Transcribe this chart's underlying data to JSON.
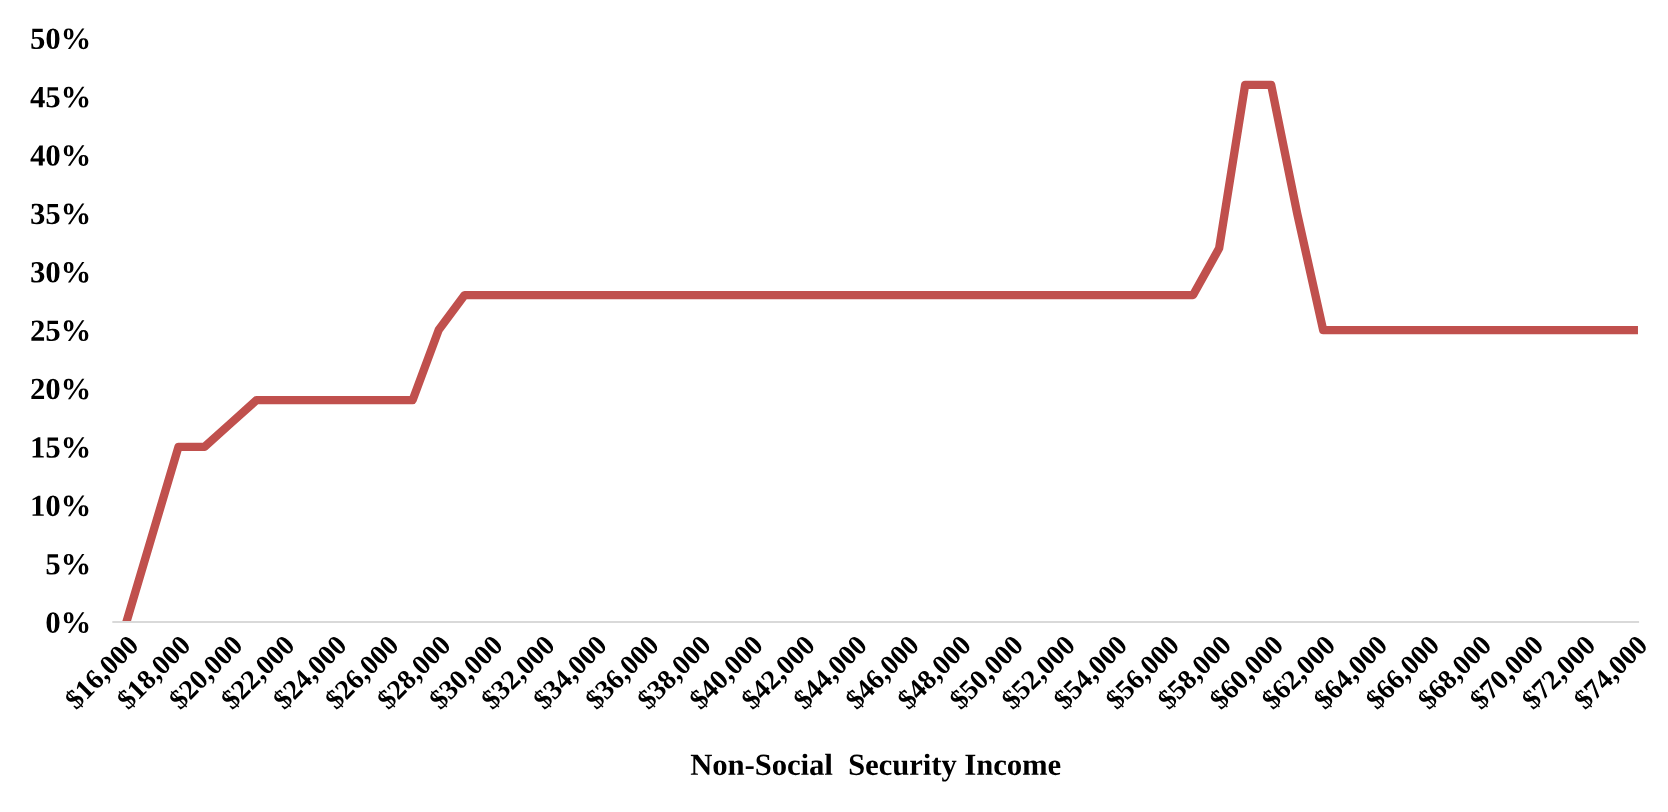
{
  "chart_data": {
    "type": "line",
    "xlabel": "Non-Social  Security Income",
    "categories": [
      "$16,000",
      null,
      "$18,000",
      null,
      "$20,000",
      null,
      "$22,000",
      null,
      "$24,000",
      null,
      "$26,000",
      null,
      "$28,000",
      null,
      "$30,000",
      null,
      "$32,000",
      null,
      "$34,000",
      null,
      "$36,000",
      null,
      "$38,000",
      null,
      "$40,000",
      null,
      "$42,000",
      null,
      "$44,000",
      null,
      "$46,000",
      null,
      "$48,000",
      null,
      "$50,000",
      null,
      "$52,000",
      null,
      "$54,000",
      null,
      "$56,000",
      null,
      "$58,000",
      null,
      "$60,000",
      null,
      "$62,000",
      null,
      "$64,000",
      null,
      "$66,000",
      null,
      "$68,000",
      null,
      "$70,000",
      null,
      "$72,000",
      null,
      "$74,000"
    ],
    "series": [
      {
        "color": "#c0504d",
        "values": [
          0,
          7.5,
          15,
          15,
          17,
          19,
          19,
          19,
          19,
          19,
          19,
          19,
          25,
          28,
          28,
          28,
          28,
          28,
          28,
          28,
          28,
          28,
          28,
          28,
          28,
          28,
          28,
          28,
          28,
          28,
          28,
          28,
          28,
          28,
          28,
          28,
          28,
          28,
          28,
          28,
          28,
          28,
          32,
          46,
          46,
          35,
          25,
          25,
          25,
          25,
          25,
          25,
          25,
          25,
          25,
          25,
          25,
          25,
          25
        ]
      }
    ],
    "ylim": [
      0,
      50
    ],
    "yticks": [
      {
        "value": 0,
        "label": "0%"
      },
      {
        "value": 5,
        "label": "5%"
      },
      {
        "value": 10,
        "label": "10%"
      },
      {
        "value": 15,
        "label": "15%"
      },
      {
        "value": 20,
        "label": "20%"
      },
      {
        "value": 25,
        "label": "25%"
      },
      {
        "value": 30,
        "label": "30%"
      },
      {
        "value": 35,
        "label": "35%"
      },
      {
        "value": 40,
        "label": "40%"
      },
      {
        "value": 45,
        "label": "45%"
      },
      {
        "value": 50,
        "label": "50%"
      }
    ],
    "grid": false,
    "marker": "none",
    "line_style": "solid"
  }
}
